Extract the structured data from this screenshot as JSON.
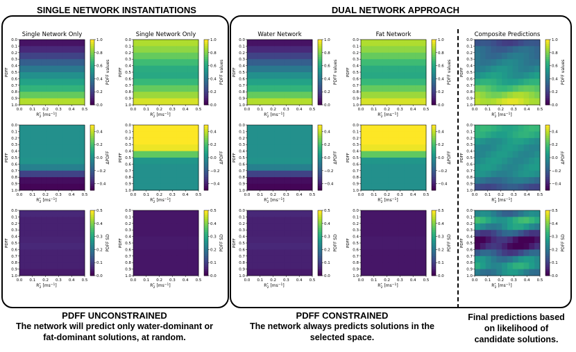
{
  "titles": {
    "single": "SINGLE NETWORK INSTANTIATIONS",
    "dual": "DUAL NETWORK APPROACH"
  },
  "captions": {
    "left_head": "PDFF UNCONSTRAINED",
    "left_body1": "The network will predict only water-dominant or",
    "left_body2": "fat-dominant solutions, at random.",
    "mid_head": "PDFF CONSTRAINED",
    "mid_body1": "The network always  predicts solutions in the",
    "mid_body2": "selected space.",
    "right_body1": "Final predictions based",
    "right_body2": "on likelihood of",
    "right_body3": "candidate solutions."
  },
  "column_titles": [
    "Single Network Only",
    "Single Network Only",
    "Water Network",
    "Fat Network",
    "Composite Predictions"
  ],
  "axes": {
    "ylabel": "PDFF",
    "xlabel_main": "R",
    "xlabel_sup": "*",
    "xlabel_sub": "2",
    "xlabel_unit": "[ms",
    "xlabel_exp": "−1",
    "xlabel_end": "]",
    "y_ticks": [
      "0.0",
      "0.1",
      "0.2",
      "0.3",
      "0.4",
      "0.5",
      "0.6",
      "0.7",
      "0.8",
      "0.9",
      "1.0"
    ],
    "x_ticks": [
      "0.0",
      "0.1",
      "0.2",
      "0.3",
      "0.4",
      "0.5"
    ]
  },
  "colorbars": [
    {
      "label": "PDFF values",
      "ticks": [
        "1.0",
        "0.8",
        "0.6",
        "0.4",
        "0.2",
        "0.0"
      ]
    },
    {
      "label": "ΔPDFF",
      "ticks": [
        "0.4",
        "0.2",
        "0.0",
        "−0.2",
        "−0.4"
      ]
    },
    {
      "label": "PDFF SD",
      "ticks": [
        "0.5",
        "0.4",
        "0.3",
        "0.2",
        "0.1",
        "0.0"
      ]
    }
  ],
  "chart_data": {
    "type": "heatmap",
    "colormap": "viridis",
    "description_rows": [
      "PDFF values",
      "ΔPDFF",
      "PDFF SD"
    ],
    "x_range": [
      0.0,
      0.5
    ],
    "y_range": [
      0.0,
      1.0
    ],
    "panels": [
      {
        "column": "Single Network Only",
        "metric": "PDFF values",
        "row_profile": [
          0.02,
          0.08,
          0.15,
          0.25,
          0.35,
          0.45,
          0.55,
          0.6,
          0.7,
          0.82,
          0.95
        ]
      },
      {
        "column": "Single Network Only",
        "metric": "PDFF values",
        "row_profile": [
          0.9,
          0.86,
          0.8,
          0.72,
          0.65,
          0.58,
          0.62,
          0.72,
          0.8,
          0.9,
          0.98
        ]
      },
      {
        "column": "Water Network",
        "metric": "PDFF values",
        "row_profile": [
          0.02,
          0.08,
          0.15,
          0.25,
          0.35,
          0.45,
          0.55,
          0.6,
          0.7,
          0.82,
          0.95
        ]
      },
      {
        "column": "Fat Network",
        "metric": "PDFF values",
        "row_profile": [
          0.9,
          0.86,
          0.8,
          0.72,
          0.65,
          0.58,
          0.62,
          0.72,
          0.8,
          0.9,
          0.98
        ]
      },
      {
        "column": "Composite Predictions",
        "metric": "PDFF values",
        "row_profile": [
          0.15,
          0.3,
          0.35,
          0.4,
          0.45,
          0.5,
          0.55,
          0.65,
          0.78,
          0.88,
          0.95
        ]
      },
      {
        "column": "Single Network Only",
        "metric": "ΔPDFF",
        "row_profile": [
          0.0,
          0.0,
          0.0,
          0.0,
          0.0,
          0.0,
          0.02,
          -0.15,
          -0.45,
          -0.48,
          -0.5
        ]
      },
      {
        "column": "Single Network Only",
        "metric": "ΔPDFF",
        "row_profile": [
          0.5,
          0.5,
          0.5,
          0.5,
          0.45,
          0.05,
          0.0,
          0.0,
          0.0,
          0.0,
          0.0
        ]
      },
      {
        "column": "Water Network",
        "metric": "ΔPDFF",
        "row_profile": [
          0.0,
          0.0,
          0.0,
          0.0,
          0.0,
          0.0,
          0.02,
          -0.15,
          -0.45,
          -0.48,
          -0.5
        ]
      },
      {
        "column": "Fat Network",
        "metric": "ΔPDFF",
        "row_profile": [
          0.5,
          0.5,
          0.5,
          0.5,
          0.45,
          0.05,
          0.0,
          0.0,
          0.0,
          0.0,
          0.0
        ]
      },
      {
        "column": "Composite Predictions",
        "metric": "ΔPDFF",
        "row_profile": [
          0.1,
          0.15,
          0.05,
          0.0,
          0.0,
          0.0,
          0.0,
          0.0,
          -0.05,
          -0.2,
          -0.3
        ]
      },
      {
        "column": "Single Network Only",
        "metric": "PDFF SD",
        "row_profile": [
          0.06,
          0.05,
          0.04,
          0.05,
          0.04,
          0.06,
          0.05,
          0.04,
          0.05,
          0.04,
          0.03
        ]
      },
      {
        "column": "Single Network Only",
        "metric": "PDFF SD",
        "row_profile": [
          0.03,
          0.03,
          0.03,
          0.03,
          0.03,
          0.04,
          0.03,
          0.03,
          0.03,
          0.03,
          0.03
        ]
      },
      {
        "column": "Water Network",
        "metric": "PDFF SD",
        "row_profile": [
          0.06,
          0.05,
          0.04,
          0.05,
          0.04,
          0.06,
          0.05,
          0.04,
          0.05,
          0.04,
          0.03
        ]
      },
      {
        "column": "Fat Network",
        "metric": "PDFF SD",
        "row_profile": [
          0.03,
          0.03,
          0.03,
          0.03,
          0.03,
          0.04,
          0.03,
          0.03,
          0.03,
          0.03,
          0.03
        ]
      },
      {
        "column": "Composite Predictions",
        "metric": "PDFF SD",
        "row_profile": [
          0.1,
          0.3,
          0.3,
          0.2,
          0.05,
          0.02,
          0.05,
          0.2,
          0.25,
          0.3,
          0.15
        ]
      }
    ]
  },
  "colors": {
    "border": "#000000",
    "background": "#ffffff"
  }
}
